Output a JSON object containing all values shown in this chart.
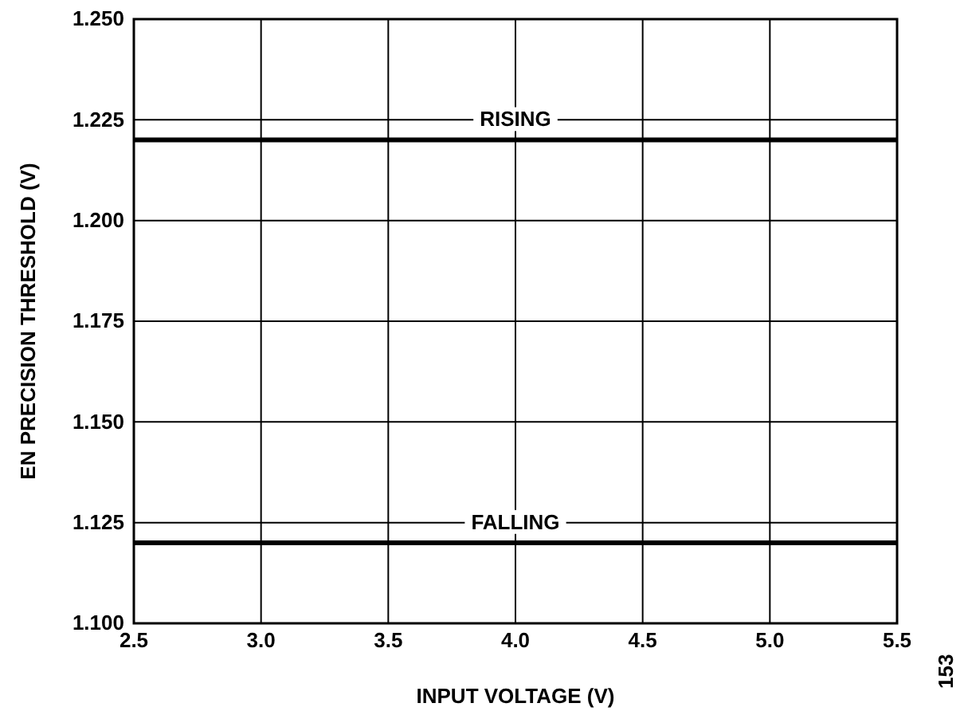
{
  "chart_data": {
    "type": "line",
    "xlabel": "INPUT VOLTAGE (V)",
    "ylabel": "EN PRECISION THRESHOLD (V)",
    "xlim": [
      2.5,
      5.5
    ],
    "ylim": [
      1.1,
      1.25
    ],
    "xticks": [
      {
        "value": 2.5,
        "label": "2.5"
      },
      {
        "value": 3,
        "label": "3.0"
      },
      {
        "value": 3.5,
        "label": "3.5"
      },
      {
        "value": 4,
        "label": "4.0"
      },
      {
        "value": 4.5,
        "label": "4.5"
      },
      {
        "value": 5,
        "label": "5.0"
      },
      {
        "value": 5.5,
        "label": "5.5"
      }
    ],
    "yticks": [
      {
        "value": 1.1,
        "label": "1.100"
      },
      {
        "value": 1.125,
        "label": "1.125"
      },
      {
        "value": 1.15,
        "label": "1.150"
      },
      {
        "value": 1.175,
        "label": "1.175"
      },
      {
        "value": 1.2,
        "label": "1.200"
      },
      {
        "value": 1.225,
        "label": "1.225"
      },
      {
        "value": 1.25,
        "label": "1.250"
      }
    ],
    "grid": true,
    "line_style": "solid",
    "x": [
      2.5,
      5.5
    ],
    "series": [
      {
        "name": "RISING",
        "color": "#000000",
        "values": [
          1.22,
          1.22
        ]
      },
      {
        "name": "FALLING",
        "color": "#000000",
        "values": [
          1.12,
          1.12
        ]
      }
    ],
    "annotations": [
      "153"
    ]
  }
}
